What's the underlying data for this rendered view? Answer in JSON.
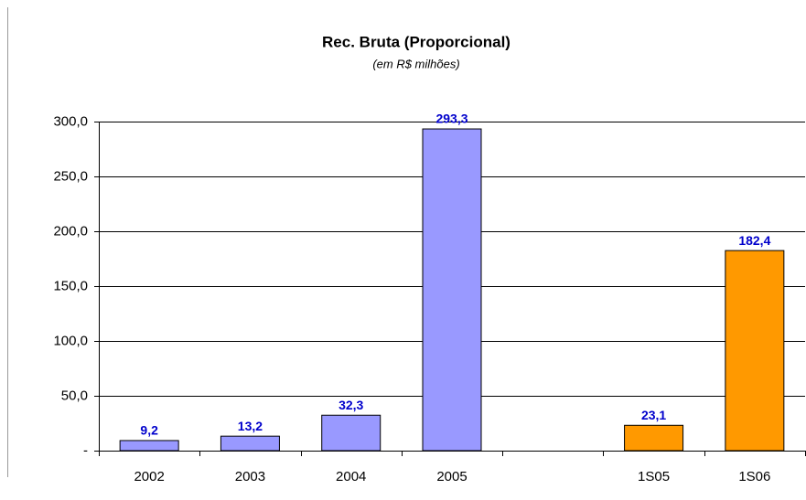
{
  "chart_data": {
    "type": "bar",
    "title": "Rec. Bruta (Proporcional)",
    "subtitle": "(em R$ milhões)",
    "categories": [
      "2002",
      "2003",
      "2004",
      "2005",
      null,
      "1S05",
      "1S06"
    ],
    "values": [
      9.2,
      13.2,
      32.3,
      293.3,
      null,
      23.1,
      182.4
    ],
    "value_labels": [
      "9,2",
      "13,2",
      "32,3",
      "293,3",
      null,
      "23,1",
      "182,4"
    ],
    "colors": [
      "#9999ff",
      "#9999ff",
      "#9999ff",
      "#9999ff",
      null,
      "#ff9900",
      "#ff9900"
    ],
    "ylim": [
      0,
      300
    ],
    "yticks": [
      {
        "value": 0,
        "label": "-"
      },
      {
        "value": 50,
        "label": "50,0"
      },
      {
        "value": 100,
        "label": "100,0"
      },
      {
        "value": 150,
        "label": "150,0"
      },
      {
        "value": 200,
        "label": "200,0"
      },
      {
        "value": 250,
        "label": "250,0"
      },
      {
        "value": 300,
        "label": "300,0"
      }
    ],
    "grid": true
  }
}
